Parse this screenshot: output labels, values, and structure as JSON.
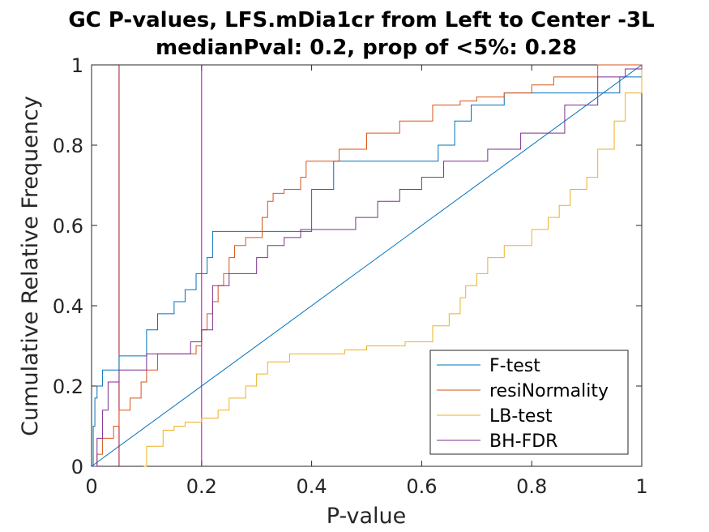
{
  "chart_data": {
    "type": "line",
    "title": [
      "GC P-values, LFS.mDia1cr from Left to Center -3L",
      "medianPval: 0.2, prop of <5%: 0.28"
    ],
    "xlabel": "P-value",
    "ylabel": "Cumulative Relative Frequency",
    "xlim": [
      0,
      1
    ],
    "ylim": [
      0,
      1
    ],
    "xticks": [
      "0",
      "0.2",
      "0.4",
      "0.6",
      "0.8",
      "1"
    ],
    "yticks": [
      "0",
      "0.2",
      "0.4",
      "0.6",
      "0.8",
      "1"
    ],
    "grid": false,
    "legend_position": "bottom-right",
    "vlines": [
      {
        "x": 0.05,
        "color": "#A2142F"
      },
      {
        "x": 0.2,
        "color": "#BE00BE"
      }
    ],
    "diagonal": {
      "x": [
        0,
        1
      ],
      "y": [
        0,
        1
      ],
      "color": "#0072BD"
    },
    "series": [
      {
        "name": "F-test",
        "color": "#0072BD",
        "x": [
          0,
          0.003,
          0.006,
          0.01,
          0.02,
          0.03,
          0.05,
          0.08,
          0.1,
          0.12,
          0.13,
          0.15,
          0.17,
          0.19,
          0.2,
          0.21,
          0.22,
          0.25,
          0.4,
          0.44,
          0.59,
          0.63,
          0.66,
          0.67,
          0.69,
          0.71,
          0.75,
          0.87,
          0.95,
          0.96,
          0.97,
          1
        ],
        "y": [
          0,
          0.1,
          0.17,
          0.2,
          0.24,
          0.24,
          0.275,
          0.275,
          0.34,
          0.38,
          0.38,
          0.41,
          0.44,
          0.48,
          0.48,
          0.52,
          0.585,
          0.585,
          0.69,
          0.76,
          0.76,
          0.8,
          0.86,
          0.86,
          0.9,
          0.9,
          0.93,
          0.93,
          0.93,
          0.97,
          0.97,
          1
        ]
      },
      {
        "name": "resiNormality",
        "color": "#D95319",
        "x": [
          0,
          0.01,
          0.02,
          0.04,
          0.05,
          0.07,
          0.09,
          0.1,
          0.1,
          0.12,
          0.18,
          0.19,
          0.2,
          0.21,
          0.22,
          0.23,
          0.24,
          0.25,
          0.26,
          0.28,
          0.3,
          0.31,
          0.32,
          0.33,
          0.35,
          0.38,
          0.39,
          0.43,
          0.45,
          0.5,
          0.56,
          0.6,
          0.62,
          0.65,
          0.67,
          0.7,
          0.75,
          0.8,
          0.84,
          0.9,
          0.92,
          1
        ],
        "y": [
          0,
          0.03,
          0.07,
          0.1,
          0.14,
          0.17,
          0.21,
          0.24,
          0.24,
          0.28,
          0.28,
          0.3,
          0.34,
          0.38,
          0.41,
          0.45,
          0.48,
          0.52,
          0.55,
          0.57,
          0.57,
          0.62,
          0.66,
          0.68,
          0.69,
          0.72,
          0.76,
          0.76,
          0.79,
          0.83,
          0.86,
          0.86,
          0.9,
          0.9,
          0.91,
          0.92,
          0.93,
          0.95,
          0.97,
          0.97,
          1,
          1
        ]
      },
      {
        "name": "LB-test",
        "color": "#EDB120",
        "x": [
          0.095,
          0.1,
          0.13,
          0.15,
          0.17,
          0.2,
          0.23,
          0.25,
          0.28,
          0.3,
          0.32,
          0.36,
          0.46,
          0.5,
          0.57,
          0.62,
          0.65,
          0.67,
          0.68,
          0.7,
          0.72,
          0.75,
          0.8,
          0.83,
          0.85,
          0.87,
          0.9,
          0.92,
          0.95,
          0.97,
          1
        ],
        "y": [
          0,
          0.05,
          0.09,
          0.1,
          0.11,
          0.12,
          0.14,
          0.17,
          0.2,
          0.23,
          0.26,
          0.28,
          0.29,
          0.3,
          0.31,
          0.35,
          0.38,
          0.42,
          0.45,
          0.48,
          0.52,
          0.55,
          0.59,
          0.62,
          0.65,
          0.69,
          0.72,
          0.79,
          0.86,
          0.93,
          1
        ]
      },
      {
        "name": "BH-FDR",
        "color": "#7E2F8E",
        "x": [
          0,
          0.01,
          0.02,
          0.03,
          0.05,
          0.08,
          0.1,
          0.15,
          0.18,
          0.2,
          0.22,
          0.25,
          0.3,
          0.32,
          0.35,
          0.38,
          0.43,
          0.48,
          0.52,
          0.56,
          0.6,
          0.64,
          0.68,
          0.72,
          0.78,
          0.86,
          0.92,
          0.95,
          0.97,
          1
        ],
        "y": [
          0,
          0.07,
          0.14,
          0.21,
          0.24,
          0.24,
          0.28,
          0.28,
          0.31,
          0.34,
          0.45,
          0.48,
          0.52,
          0.55,
          0.57,
          0.59,
          0.59,
          0.62,
          0.66,
          0.69,
          0.72,
          0.76,
          0.76,
          0.79,
          0.83,
          0.9,
          0.97,
          0.97,
          0.99,
          1
        ]
      }
    ]
  }
}
